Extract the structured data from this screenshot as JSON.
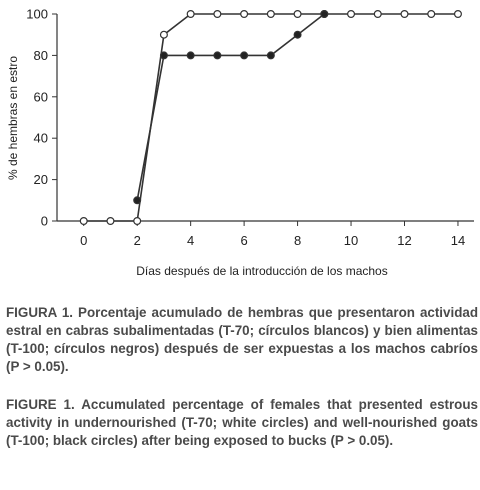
{
  "chart_data": {
    "type": "line",
    "ylabel": "% de hembras en estro",
    "xlabel": "Días después de la introducción de los machos",
    "xlim": [
      -1,
      14.6
    ],
    "ylim": [
      0,
      100
    ],
    "xticks": [
      0,
      2,
      4,
      6,
      8,
      10,
      12,
      14
    ],
    "yticks": [
      0,
      20,
      40,
      60,
      80,
      100
    ],
    "grid": false,
    "series": [
      {
        "marker": "white-circle",
        "x": [
          0,
          1,
          2,
          3,
          4,
          5,
          6,
          7,
          8,
          9,
          10,
          11,
          12,
          13,
          14
        ],
        "values": [
          0,
          0,
          0,
          90,
          100,
          100,
          100,
          100,
          100,
          100,
          100,
          100,
          100,
          100,
          100
        ]
      },
      {
        "marker": "black-circle",
        "x": [
          2,
          3,
          4,
          5,
          6,
          7,
          8,
          9
        ],
        "values": [
          10,
          80,
          80,
          80,
          80,
          80,
          90,
          100
        ]
      }
    ]
  },
  "captions": {
    "es": "FIGURA 1. Porcentaje acumulado de hembras que presentaron actividad estral en cabras subalimentadas (T-70; círculos blancos) y bien alimentas (T-100; círculos negros) después de ser expuestas a los machos cabríos (P > 0.05).",
    "en": "FIGURE 1. Accumulated percentage of females that presented estrous activity in undernourished (T-70; white circles) and well-nourished goats (T-100; black circles) after being exposed to bucks (P > 0.05)."
  },
  "colors": {
    "line": "#333333",
    "text": "#4a4a4a"
  }
}
